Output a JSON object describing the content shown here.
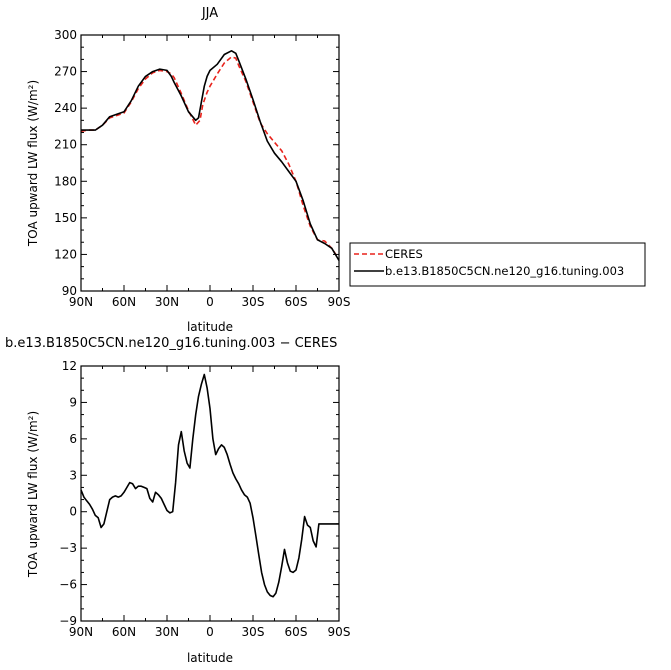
{
  "chart_data": [
    {
      "type": "line",
      "title": "JJA",
      "xlabel": "latitude",
      "ylabel": "TOA upward LW flux (W/m²)",
      "xlim": [
        90,
        -90
      ],
      "ylim": [
        90,
        300
      ],
      "x_ticks": [
        90,
        60,
        30,
        0,
        -30,
        -60,
        -90
      ],
      "x_tick_labels": [
        "90N",
        "60N",
        "30N",
        "0",
        "30S",
        "60S",
        "90S"
      ],
      "y_ticks": [
        90,
        120,
        150,
        180,
        210,
        240,
        270,
        300
      ],
      "y_tick_labels": [
        "90",
        "120",
        "150",
        "180",
        "210",
        "240",
        "270",
        "300"
      ],
      "legend_position": "right",
      "series": [
        {
          "name": "CERES",
          "color": "#e8221b",
          "dash": "dashed",
          "x": [
            90,
            85,
            80,
            75,
            70,
            65,
            60,
            55,
            50,
            45,
            40,
            35,
            30,
            27,
            25,
            20,
            15,
            10,
            7,
            5,
            2,
            0,
            -5,
            -10,
            -15,
            -18,
            -20,
            -25,
            -30,
            -35,
            -40,
            -45,
            -50,
            -55,
            -60,
            -65,
            -70,
            -75,
            -80,
            -85,
            -90
          ],
          "y": [
            221,
            222,
            222,
            226,
            232,
            234,
            236,
            245,
            256,
            264,
            269,
            271,
            270,
            268,
            265,
            252,
            238,
            226,
            230,
            243,
            253,
            258,
            268,
            277,
            282,
            281,
            275,
            262,
            245,
            228,
            219,
            212,
            205,
            194,
            180,
            160,
            143,
            132,
            131,
            125,
            116
          ]
        },
        {
          "name": "b.e13.B1850C5CN.ne120_g16.tuning.003",
          "color": "#000000",
          "dash": "solid",
          "x": [
            90,
            85,
            80,
            75,
            70,
            65,
            60,
            55,
            50,
            45,
            40,
            35,
            30,
            27,
            25,
            20,
            15,
            10,
            8,
            6,
            4,
            2,
            0,
            -5,
            -10,
            -15,
            -18,
            -20,
            -25,
            -30,
            -35,
            -40,
            -45,
            -50,
            -55,
            -60,
            -65,
            -70,
            -75,
            -80,
            -85,
            -90
          ],
          "y": [
            222,
            222,
            222,
            226,
            233,
            235,
            237,
            246,
            258,
            266,
            270,
            272,
            271,
            266,
            261,
            250,
            237,
            230,
            232,
            245,
            258,
            266,
            271,
            276,
            284,
            287,
            285,
            279,
            264,
            247,
            229,
            213,
            203,
            196,
            188,
            180,
            164,
            145,
            132,
            129,
            125,
            115
          ]
        }
      ]
    },
    {
      "type": "line",
      "title": "b.e13.B1850C5CN.ne120_g16.tuning.003 − CERES",
      "xlabel": "latitude",
      "ylabel": "TOA upward LW flux (W/m²)",
      "xlim": [
        90,
        -90
      ],
      "ylim": [
        -9,
        12
      ],
      "x_ticks": [
        90,
        60,
        30,
        0,
        -30,
        -60,
        -90
      ],
      "x_tick_labels": [
        "90N",
        "60N",
        "30N",
        "0",
        "30S",
        "60S",
        "90S"
      ],
      "y_ticks": [
        -9,
        -6,
        -3,
        0,
        3,
        6,
        9,
        12
      ],
      "y_tick_labels": [
        "−9",
        "−6",
        "−3",
        "0",
        "3",
        "6",
        "9",
        "12"
      ],
      "series": [
        {
          "color": "#000000",
          "dash": "solid",
          "x": [
            90,
            88,
            86,
            84,
            82,
            80,
            78,
            76,
            74,
            72,
            70,
            68,
            66,
            64,
            62,
            60,
            58,
            56,
            54,
            52,
            50,
            48,
            46,
            44,
            42,
            40,
            38,
            36,
            34,
            32,
            30,
            28,
            26,
            24,
            22,
            20,
            18,
            16,
            14,
            12,
            10,
            8,
            6,
            4,
            2,
            0,
            -2,
            -4,
            -6,
            -8,
            -10,
            -12,
            -14,
            -16,
            -18,
            -20,
            -22,
            -24,
            -26,
            -28,
            -30,
            -32,
            -34,
            -36,
            -38,
            -40,
            -42,
            -44,
            -46,
            -48,
            -50,
            -52,
            -54,
            -56,
            -58,
            -60,
            -62,
            -64,
            -66,
            -68,
            -70,
            -72,
            -74,
            -76,
            -78,
            -80,
            -82,
            -84,
            -86,
            -88,
            -90
          ],
          "y": [
            1.8,
            1.2,
            0.9,
            0.6,
            0.2,
            -0.3,
            -0.5,
            -1.3,
            -1.0,
            0.0,
            1.0,
            1.2,
            1.3,
            1.2,
            1.3,
            1.6,
            2.0,
            2.4,
            2.3,
            1.9,
            2.1,
            2.1,
            2.0,
            1.9,
            1.1,
            0.8,
            1.6,
            1.4,
            1.1,
            0.6,
            0.1,
            -0.1,
            0.0,
            2.4,
            5.5,
            6.6,
            5.0,
            4.0,
            3.6,
            6.0,
            8.0,
            9.5,
            10.5,
            11.3,
            10.2,
            8.5,
            6.0,
            4.7,
            5.2,
            5.5,
            5.3,
            4.7,
            3.9,
            3.2,
            2.7,
            2.3,
            1.8,
            1.4,
            1.2,
            0.7,
            -0.5,
            -2.0,
            -3.5,
            -5.0,
            -6.0,
            -6.6,
            -6.9,
            -7.0,
            -6.7,
            -5.8,
            -4.5,
            -3.1,
            -4.2,
            -4.9,
            -5.0,
            -4.8,
            -3.8,
            -2.3,
            -0.4,
            -1.1,
            -1.3,
            -2.4,
            -2.9,
            -1.0,
            -1.0,
            -1.0,
            -1.0,
            -1.0,
            -1.0,
            -1.0,
            -1.0
          ]
        }
      ]
    }
  ],
  "legend": {
    "entries": [
      {
        "label": "CERES",
        "color": "#e8221b",
        "dash": "dashed"
      },
      {
        "label": "b.e13.B1850C5CN.ne120_g16.tuning.003",
        "color": "#000000",
        "dash": "solid"
      }
    ]
  }
}
